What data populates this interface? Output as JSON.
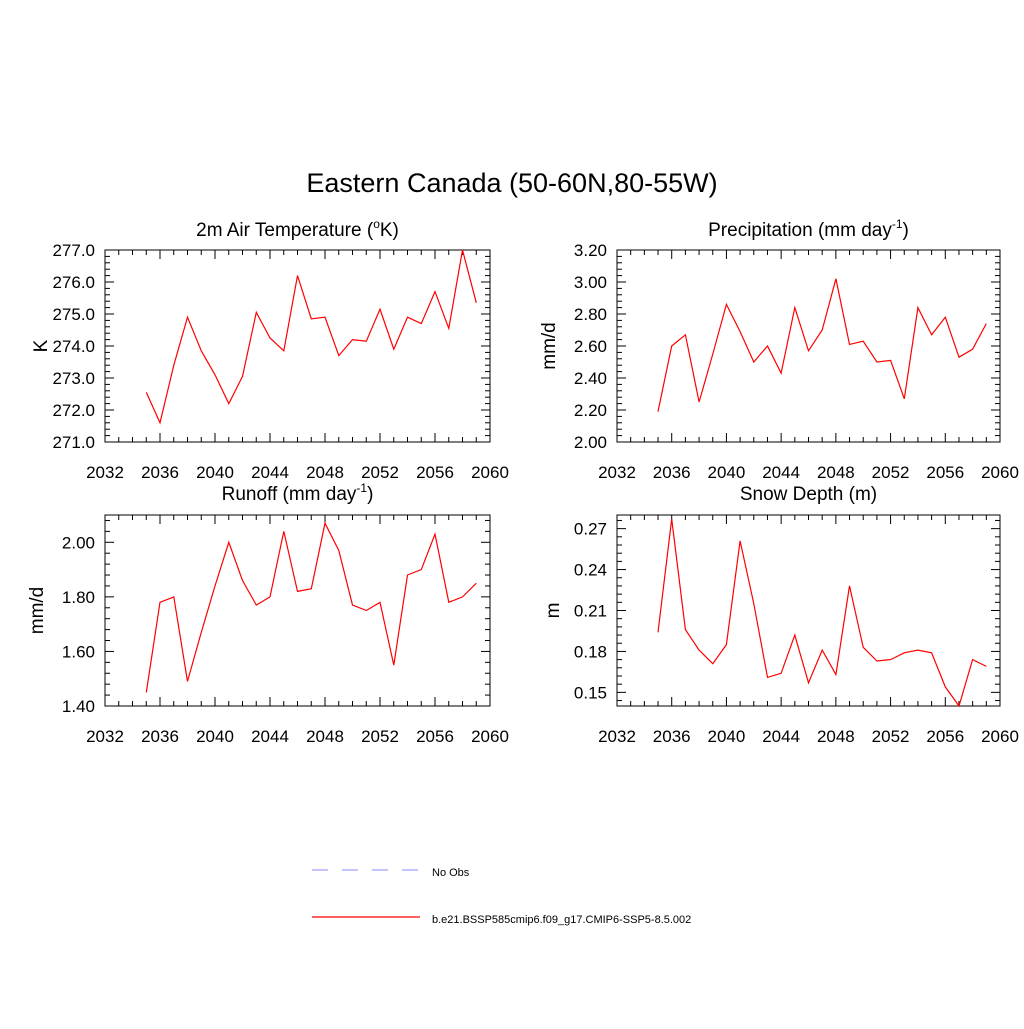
{
  "figure": {
    "title": "Eastern Canada (50-60N,80-55W)"
  },
  "colors": {
    "model_line": "#ff0000",
    "obs_line": "#a0a0ff",
    "axis": "#000000"
  },
  "legend": {
    "entries": [
      {
        "label": "No Obs",
        "style": "dashed",
        "color": "#a0a0ff"
      },
      {
        "label": "b.e21.BSSP585cmip6.f09_g17.CMIP6-SSP5-8.5.002",
        "style": "solid",
        "color": "#ff0000"
      }
    ]
  },
  "chart_data": [
    {
      "type": "line",
      "title": "2m Air Temperature (",
      "title_super": "o",
      "title_suffix": "K)",
      "ylabel": "K",
      "xlabel": "",
      "xlim": [
        2032,
        2060
      ],
      "ylim": [
        271.0,
        277.0
      ],
      "xticks": [
        2032,
        2036,
        2040,
        2044,
        2048,
        2052,
        2056,
        2060
      ],
      "yticks": [
        "271.0",
        "272.0",
        "273.0",
        "274.0",
        "275.0",
        "276.0",
        "277.0"
      ],
      "series": [
        {
          "name": "b.e21.BSSP585cmip6.f09_g17.CMIP6-SSP5-8.5.002",
          "x": [
            2035,
            2036,
            2037,
            2038,
            2039,
            2040,
            2041,
            2042,
            2043,
            2044,
            2045,
            2046,
            2047,
            2048,
            2049,
            2050,
            2051,
            2052,
            2053,
            2054,
            2055,
            2056,
            2057,
            2058,
            2059
          ],
          "y": [
            272.55,
            271.6,
            273.4,
            274.9,
            273.85,
            273.1,
            272.2,
            273.05,
            275.05,
            274.25,
            273.85,
            276.2,
            274.85,
            274.9,
            273.7,
            274.2,
            274.15,
            275.15,
            273.9,
            274.9,
            274.7,
            275.7,
            274.55,
            277.0,
            275.35
          ]
        }
      ]
    },
    {
      "type": "line",
      "title": "Precipitation (mm day",
      "title_super": "-1",
      "title_suffix": ")",
      "ylabel": "mm/d",
      "xlabel": "",
      "xlim": [
        2032,
        2060
      ],
      "ylim": [
        2.0,
        3.2
      ],
      "xticks": [
        2032,
        2036,
        2040,
        2044,
        2048,
        2052,
        2056,
        2060
      ],
      "yticks": [
        "2.00",
        "2.20",
        "2.40",
        "2.60",
        "2.80",
        "3.00",
        "3.20"
      ],
      "series": [
        {
          "name": "b.e21.BSSP585cmip6.f09_g17.CMIP6-SSP5-8.5.002",
          "x": [
            2035,
            2036,
            2037,
            2038,
            2039,
            2040,
            2041,
            2042,
            2043,
            2044,
            2045,
            2046,
            2047,
            2048,
            2049,
            2050,
            2051,
            2052,
            2053,
            2054,
            2055,
            2056,
            2057,
            2058,
            2059
          ],
          "y": [
            2.19,
            2.6,
            2.67,
            2.25,
            2.55,
            2.86,
            2.69,
            2.5,
            2.6,
            2.43,
            2.84,
            2.57,
            2.7,
            3.02,
            2.61,
            2.63,
            2.5,
            2.51,
            2.27,
            2.84,
            2.67,
            2.78,
            2.53,
            2.58,
            2.74
          ]
        }
      ]
    },
    {
      "type": "line",
      "title": "Runoff (mm day",
      "title_super": "-1",
      "title_suffix": ")",
      "ylabel": "mm/d",
      "xlabel": "",
      "xlim": [
        2032,
        2060
      ],
      "ylim": [
        1.4,
        2.1
      ],
      "xticks": [
        2032,
        2036,
        2040,
        2044,
        2048,
        2052,
        2056,
        2060
      ],
      "yticks": [
        "1.40",
        "1.60",
        "1.80",
        "2.00"
      ],
      "series": [
        {
          "name": "b.e21.BSSP585cmip6.f09_g17.CMIP6-SSP5-8.5.002",
          "x": [
            2035,
            2036,
            2037,
            2038,
            2039,
            2040,
            2041,
            2042,
            2043,
            2044,
            2045,
            2046,
            2047,
            2048,
            2049,
            2050,
            2051,
            2052,
            2053,
            2054,
            2055,
            2056,
            2057,
            2058,
            2059
          ],
          "y": [
            1.45,
            1.78,
            1.8,
            1.49,
            1.67,
            1.84,
            2.0,
            1.86,
            1.77,
            1.8,
            2.04,
            1.82,
            1.83,
            2.07,
            1.97,
            1.77,
            1.75,
            1.78,
            1.55,
            1.88,
            1.9,
            2.03,
            1.78,
            1.8,
            1.85
          ]
        }
      ]
    },
    {
      "type": "line",
      "title": "Snow Depth (m)",
      "title_super": "",
      "title_suffix": "",
      "ylabel": "m",
      "xlabel": "",
      "xlim": [
        2032,
        2060
      ],
      "ylim": [
        0.14,
        0.28
      ],
      "xticks": [
        2032,
        2036,
        2040,
        2044,
        2048,
        2052,
        2056,
        2060
      ],
      "yticks": [
        "0.15",
        "0.18",
        "0.21",
        "0.24",
        "0.27"
      ],
      "series": [
        {
          "name": "b.e21.BSSP585cmip6.f09_g17.CMIP6-SSP5-8.5.002",
          "x": [
            2035,
            2036,
            2037,
            2038,
            2039,
            2040,
            2041,
            2042,
            2043,
            2044,
            2045,
            2046,
            2047,
            2048,
            2049,
            2050,
            2051,
            2052,
            2053,
            2054,
            2055,
            2056,
            2057,
            2058,
            2059
          ],
          "y": [
            0.194,
            0.277,
            0.196,
            0.181,
            0.171,
            0.185,
            0.261,
            0.215,
            0.161,
            0.164,
            0.192,
            0.157,
            0.181,
            0.163,
            0.228,
            0.183,
            0.173,
            0.174,
            0.179,
            0.181,
            0.179,
            0.154,
            0.14,
            0.174,
            0.169
          ]
        }
      ]
    }
  ]
}
